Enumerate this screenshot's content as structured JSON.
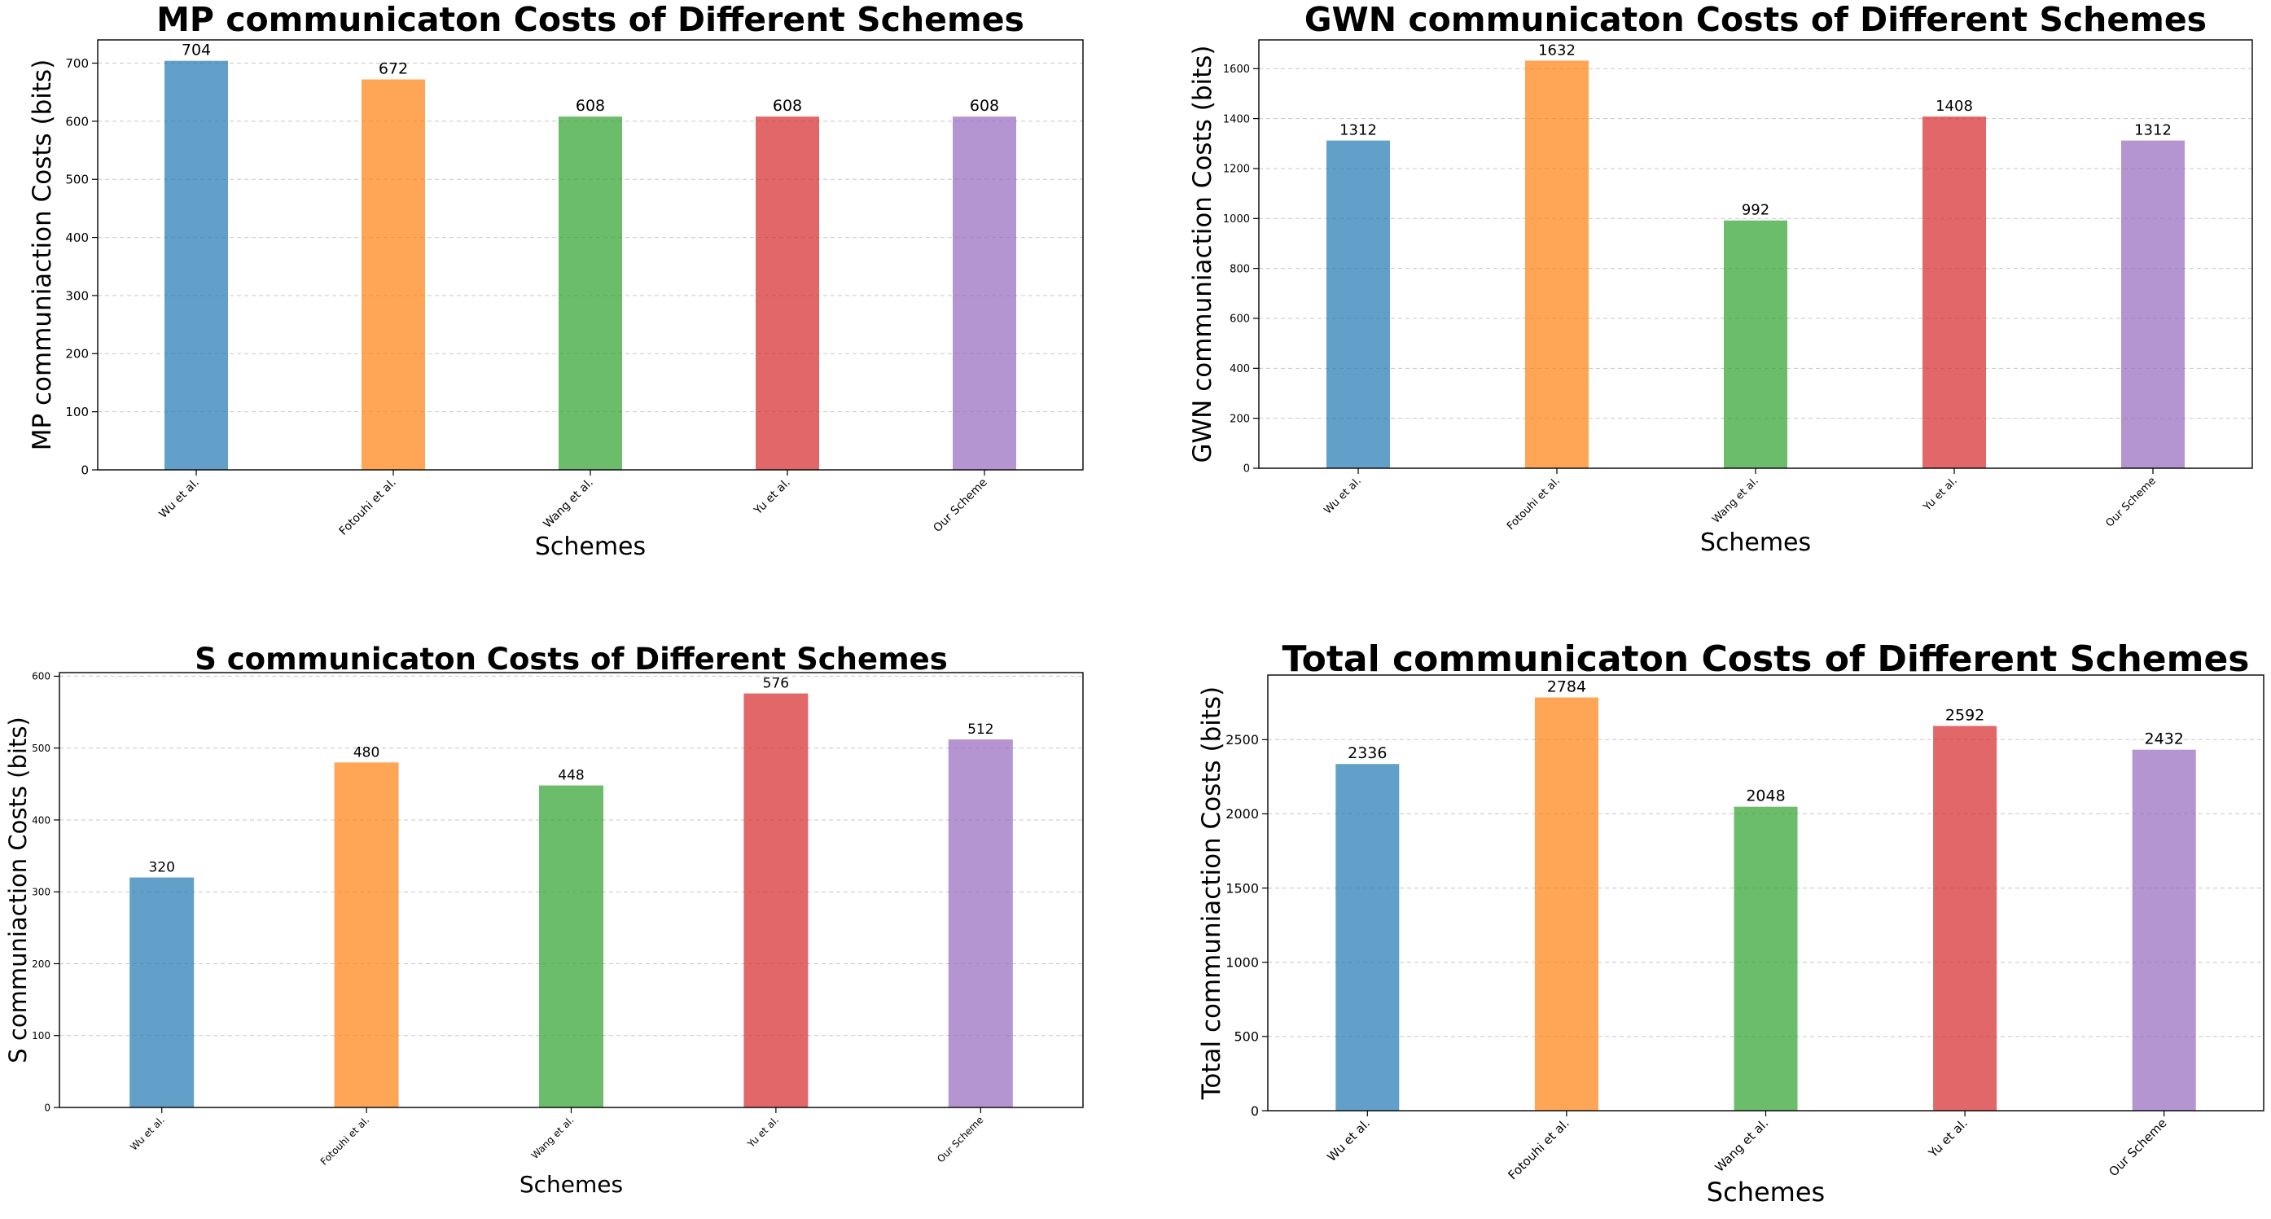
{
  "chart_data": [
    {
      "type": "bar",
      "title": "MP communicaton Costs of Different Schemes",
      "xlabel": "Schemes",
      "ylabel": "MP communiaction Costs (bits)",
      "categories": [
        "Wu et al.",
        "Fotouhi et al.",
        "Wang et al.",
        "Yu et al.",
        "Our Scheme"
      ],
      "values": [
        704,
        672,
        608,
        608,
        608
      ],
      "ylim": [
        0,
        740
      ],
      "yticks": [
        0,
        100,
        200,
        300,
        400,
        500,
        600,
        700
      ],
      "grid": "y"
    },
    {
      "type": "bar",
      "title": "GWN communicaton Costs of Different Schemes",
      "xlabel": "Schemes",
      "ylabel": "GWN communiaction Costs (bits)",
      "categories": [
        "Wu et al.",
        "Fotouhi et al.",
        "Wang et al.",
        "Yu et al.",
        "Our Scheme"
      ],
      "values": [
        1312,
        1632,
        992,
        1408,
        1312
      ],
      "ylim": [
        0,
        1715
      ],
      "yticks": [
        0,
        200,
        400,
        600,
        800,
        1000,
        1200,
        1400,
        1600
      ],
      "grid": "y"
    },
    {
      "type": "bar",
      "title": "S communicaton Costs of Different Schemes",
      "xlabel": "Schemes",
      "ylabel": "S communiaction Costs (bits)",
      "categories": [
        "Wu et al.",
        "Fotouhi et al.",
        "Wang et al.",
        "Yu et al.",
        "Our Scheme"
      ],
      "values": [
        320,
        480,
        448,
        576,
        512
      ],
      "ylim": [
        0,
        605
      ],
      "yticks": [
        0,
        100,
        200,
        300,
        400,
        500,
        600
      ],
      "grid": "y"
    },
    {
      "type": "bar",
      "title": "Total communicaton Costs of Different Schemes",
      "xlabel": "Schemes",
      "ylabel": "Total communiaction Costs (bits)",
      "categories": [
        "Wu et al.",
        "Fotouhi et al.",
        "Wang et al.",
        "Yu et al.",
        "Our Scheme"
      ],
      "values": [
        2336,
        2784,
        2048,
        2592,
        2432
      ],
      "ylim": [
        0,
        2935
      ],
      "yticks": [
        0,
        500,
        1000,
        1500,
        2000,
        2500
      ],
      "grid": "y"
    }
  ],
  "colors": [
    "#1f77b4",
    "#ff7f0e",
    "#2ca02c",
    "#d62728",
    "#9467bd"
  ],
  "bar_alpha": 0.7
}
